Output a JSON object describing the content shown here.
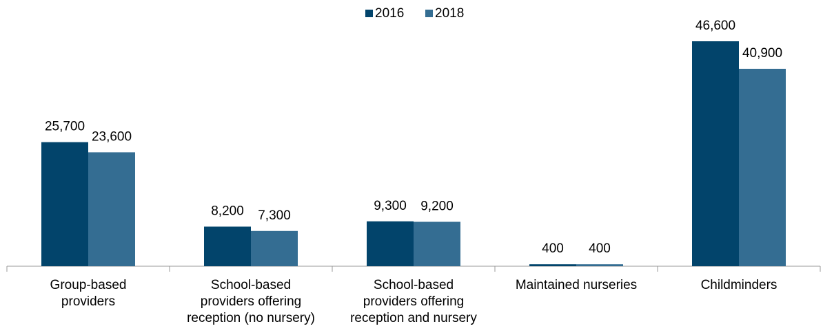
{
  "chart_data": {
    "type": "bar",
    "categories": [
      [
        "Group-based",
        "providers"
      ],
      [
        "School-based",
        "providers offering",
        "reception (no nursery)"
      ],
      [
        "School-based",
        "providers offering",
        "reception and nursery"
      ],
      [
        "Maintained nurseries"
      ],
      [
        "Childminders"
      ]
    ],
    "series": [
      {
        "name": "2016",
        "color": "#02446b",
        "values": [
          25700,
          8200,
          9300,
          400,
          46600
        ],
        "value_labels": [
          "25,700",
          "8,200",
          "9,300",
          "400",
          "46,600"
        ]
      },
      {
        "name": "2018",
        "color": "#346d92",
        "values": [
          23600,
          7300,
          9200,
          400,
          40900
        ],
        "value_labels": [
          "23,600",
          "7,300",
          "9,200",
          "400",
          "40,900"
        ]
      }
    ],
    "legend": "top"
  }
}
